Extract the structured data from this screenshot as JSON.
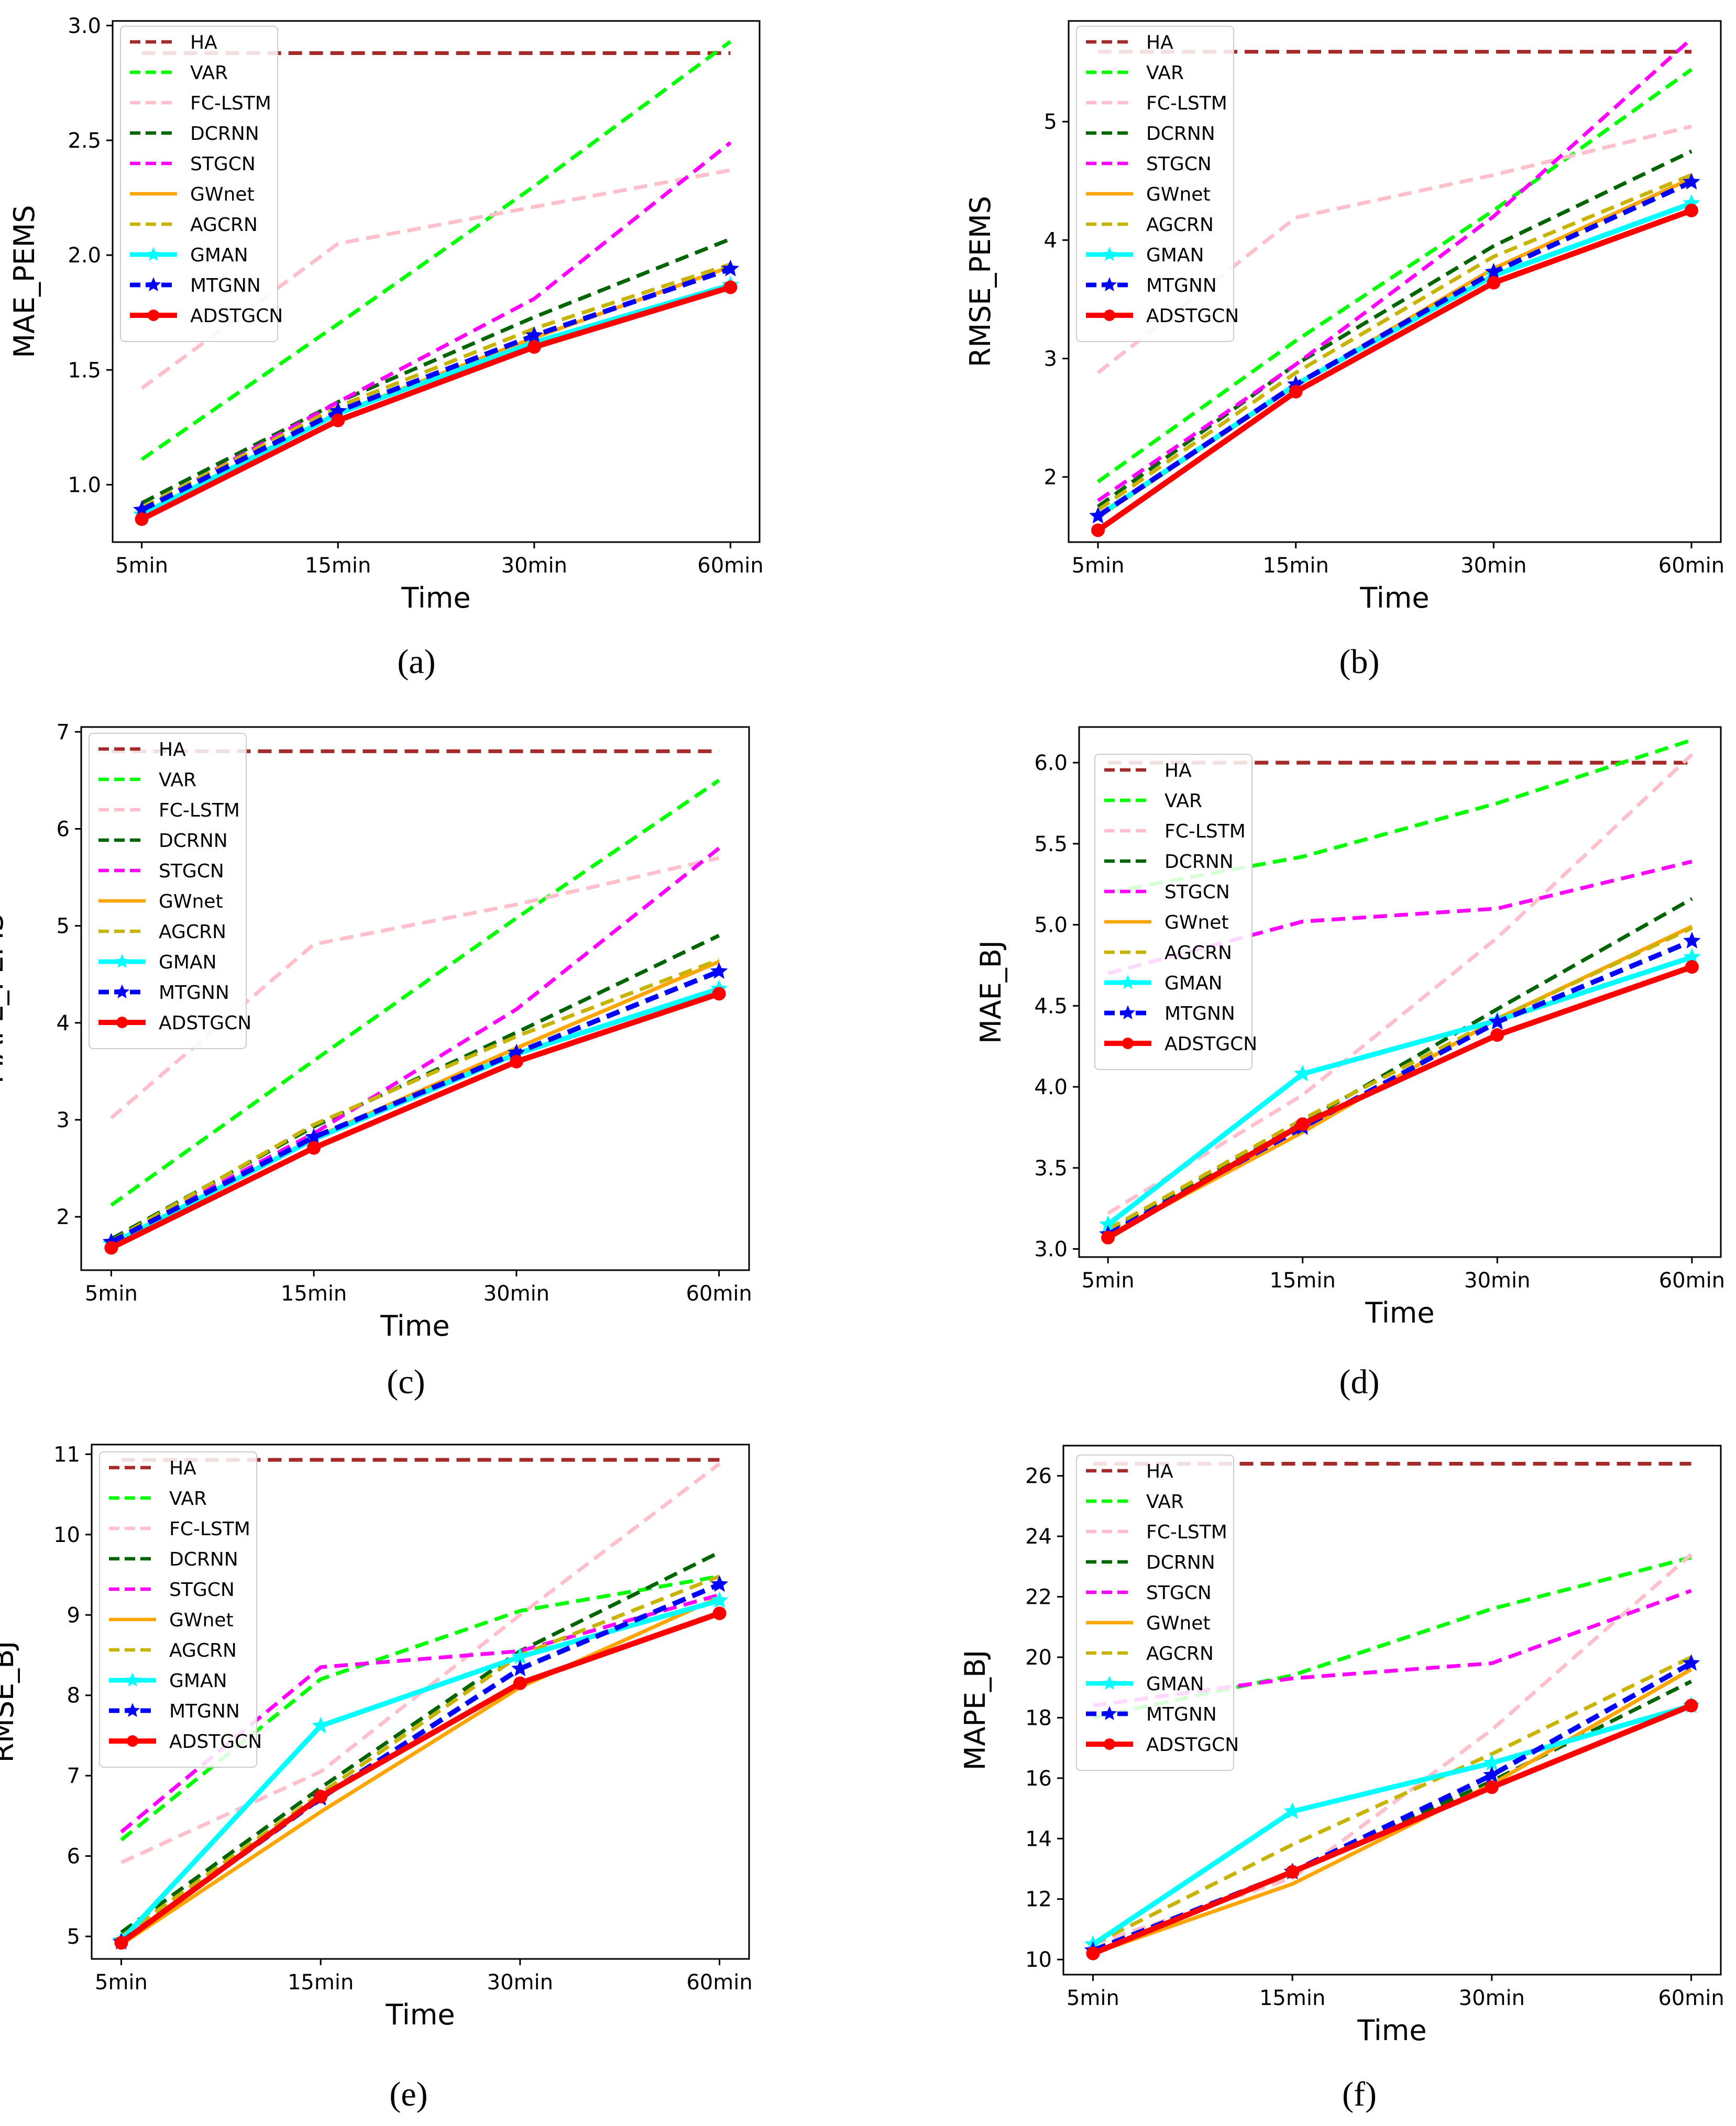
{
  "chart_data": [
    {
      "panel_label": "(a)",
      "panel_letter": "a",
      "type": "line",
      "xlabel": "Time",
      "ylabel": "MAE_PEMS",
      "categories": [
        "5min",
        "15min",
        "30min",
        "60min"
      ],
      "ylim": [
        0.75,
        3.02
      ],
      "yticks": [
        "1.0",
        "1.5",
        "2.0",
        "2.5",
        "3.0"
      ],
      "grid": false,
      "legend": "top-left",
      "series": [
        {
          "name": "HA",
          "values": [
            2.88,
            2.88,
            2.88,
            2.88
          ]
        },
        {
          "name": "VAR",
          "values": [
            1.11,
            1.7,
            2.3,
            2.93
          ]
        },
        {
          "name": "FC-LSTM",
          "values": [
            1.42,
            2.05,
            2.21,
            2.37
          ]
        },
        {
          "name": "DCRNN",
          "values": [
            0.92,
            1.36,
            1.73,
            2.07
          ]
        },
        {
          "name": "STGCN",
          "values": [
            0.89,
            1.36,
            1.81,
            2.49
          ]
        },
        {
          "name": "GWnet",
          "values": [
            0.87,
            1.31,
            1.64,
            1.95
          ]
        },
        {
          "name": "AGCRN",
          "values": [
            0.9,
            1.34,
            1.68,
            1.96
          ]
        },
        {
          "name": "GMAN",
          "values": [
            0.87,
            1.31,
            1.62,
            1.87
          ]
        },
        {
          "name": "MTGNN",
          "values": [
            0.89,
            1.32,
            1.65,
            1.94
          ]
        },
        {
          "name": "ADSTGCN",
          "values": [
            0.85,
            1.28,
            1.6,
            1.86
          ]
        }
      ]
    },
    {
      "panel_label": "(b)",
      "panel_letter": "b",
      "type": "line",
      "xlabel": "Time",
      "ylabel": "RMSE_PEMS",
      "categories": [
        "5min",
        "15min",
        "30min",
        "60min"
      ],
      "ylim": [
        1.45,
        5.85
      ],
      "yticks": [
        "2",
        "3",
        "4",
        "5"
      ],
      "grid": false,
      "legend": "top-left",
      "series": [
        {
          "name": "HA",
          "values": [
            5.59,
            5.59,
            5.59,
            5.59
          ]
        },
        {
          "name": "VAR",
          "values": [
            1.96,
            3.15,
            4.25,
            5.44
          ]
        },
        {
          "name": "FC-LSTM",
          "values": [
            2.88,
            4.19,
            4.55,
            4.96
          ]
        },
        {
          "name": "DCRNN",
          "values": [
            1.75,
            2.95,
            3.95,
            4.75
          ]
        },
        {
          "name": "STGCN",
          "values": [
            1.8,
            2.95,
            4.2,
            5.7
          ]
        },
        {
          "name": "GWnet",
          "values": [
            1.66,
            2.77,
            3.76,
            4.52
          ]
        },
        {
          "name": "AGCRN",
          "values": [
            1.72,
            2.88,
            3.86,
            4.55
          ]
        },
        {
          "name": "GMAN",
          "values": [
            1.67,
            2.78,
            3.7,
            4.31
          ]
        },
        {
          "name": "MTGNN",
          "values": [
            1.67,
            2.78,
            3.73,
            4.49
          ]
        },
        {
          "name": "ADSTGCN",
          "values": [
            1.55,
            2.72,
            3.64,
            4.25
          ]
        }
      ]
    },
    {
      "panel_label": "(c)",
      "panel_letter": "c",
      "type": "line",
      "xlabel": "Time",
      "ylabel": "MAPE_PEMS",
      "categories": [
        "5min",
        "15min",
        "30min",
        "60min"
      ],
      "ylim": [
        1.45,
        7.05
      ],
      "yticks": [
        "2",
        "3",
        "4",
        "5",
        "6",
        "7"
      ],
      "grid": false,
      "legend": "top-left",
      "series": [
        {
          "name": "HA",
          "values": [
            6.8,
            6.8,
            6.8,
            6.8
          ]
        },
        {
          "name": "VAR",
          "values": [
            2.12,
            3.61,
            5.08,
            6.5
          ]
        },
        {
          "name": "FC-LSTM",
          "values": [
            3.02,
            4.81,
            5.22,
            5.7
          ]
        },
        {
          "name": "DCRNN",
          "values": [
            1.77,
            2.93,
            3.9,
            4.9
          ]
        },
        {
          "name": "STGCN",
          "values": [
            1.75,
            2.86,
            4.14,
            5.8
          ]
        },
        {
          "name": "GWnet",
          "values": [
            1.71,
            2.81,
            3.74,
            4.63
          ]
        },
        {
          "name": "AGCRN",
          "values": [
            1.75,
            2.95,
            3.86,
            4.65
          ]
        },
        {
          "name": "GMAN",
          "values": [
            1.72,
            2.8,
            3.68,
            4.35
          ]
        },
        {
          "name": "MTGNN",
          "values": [
            1.74,
            2.82,
            3.69,
            4.53
          ]
        },
        {
          "name": "ADSTGCN",
          "values": [
            1.68,
            2.71,
            3.6,
            4.3
          ]
        }
      ]
    },
    {
      "panel_label": "(d)",
      "panel_letter": "d",
      "type": "line",
      "xlabel": "Time",
      "ylabel": "MAE_BJ",
      "categories": [
        "5min",
        "15min",
        "30min",
        "60min"
      ],
      "ylim": [
        2.95,
        6.22
      ],
      "yticks": [
        "3.0",
        "3.5",
        "4.0",
        "4.5",
        "5.0",
        "5.5",
        "6.0"
      ],
      "grid": false,
      "legend": "top-left",
      "series": [
        {
          "name": "HA",
          "values": [
            6.0,
            6.0,
            6.0,
            6.0
          ]
        },
        {
          "name": "VAR",
          "values": [
            5.2,
            5.42,
            5.75,
            6.14
          ]
        },
        {
          "name": "FC-LSTM",
          "values": [
            3.22,
            3.95,
            4.92,
            6.05
          ]
        },
        {
          "name": "DCRNN",
          "values": [
            3.11,
            3.78,
            4.48,
            5.16
          ]
        },
        {
          "name": "STGCN",
          "values": [
            4.7,
            5.02,
            5.1,
            5.39
          ]
        },
        {
          "name": "GWnet",
          "values": [
            3.08,
            3.72,
            4.42,
            4.99
          ]
        },
        {
          "name": "AGCRN",
          "values": [
            3.12,
            3.8,
            4.42,
            4.98
          ]
        },
        {
          "name": "GMAN",
          "values": [
            3.15,
            4.08,
            4.41,
            4.8
          ]
        },
        {
          "name": "MTGNN",
          "values": [
            3.09,
            3.75,
            4.4,
            4.9
          ]
        },
        {
          "name": "ADSTGCN",
          "values": [
            3.07,
            3.77,
            4.32,
            4.74
          ]
        }
      ]
    },
    {
      "panel_label": "(e)",
      "panel_letter": "e",
      "type": "line",
      "xlabel": "Time",
      "ylabel": "RMSE_BJ",
      "categories": [
        "5min",
        "15min",
        "30min",
        "60min"
      ],
      "ylim": [
        4.72,
        11.12
      ],
      "yticks": [
        "5",
        "6",
        "7",
        "8",
        "9",
        "10",
        "11"
      ],
      "grid": false,
      "legend": "top-left",
      "series": [
        {
          "name": "HA",
          "values": [
            10.93,
            10.93,
            10.93,
            10.93
          ]
        },
        {
          "name": "VAR",
          "values": [
            6.2,
            8.2,
            9.05,
            9.48
          ]
        },
        {
          "name": "FC-LSTM",
          "values": [
            5.92,
            7.05,
            9.0,
            10.88
          ]
        },
        {
          "name": "DCRNN",
          "values": [
            5.05,
            6.85,
            8.55,
            9.78
          ]
        },
        {
          "name": "STGCN",
          "values": [
            6.3,
            8.35,
            8.55,
            9.25
          ]
        },
        {
          "name": "GWnet",
          "values": [
            4.9,
            6.55,
            8.1,
            9.22
          ]
        },
        {
          "name": "AGCRN",
          "values": [
            5.0,
            6.78,
            8.5,
            9.48
          ]
        },
        {
          "name": "GMAN",
          "values": [
            4.95,
            7.62,
            8.48,
            9.18
          ]
        },
        {
          "name": "MTGNN",
          "values": [
            4.93,
            6.72,
            8.33,
            9.38
          ]
        },
        {
          "name": "ADSTGCN",
          "values": [
            4.92,
            6.74,
            8.15,
            9.02
          ]
        }
      ]
    },
    {
      "panel_label": "(f)",
      "panel_letter": "f",
      "type": "line",
      "xlabel": "Time",
      "ylabel": "MAPE_BJ",
      "categories": [
        "5min",
        "15min",
        "30min",
        "60min"
      ],
      "ylim": [
        9.5,
        27.0
      ],
      "yticks": [
        "10",
        "12",
        "14",
        "16",
        "18",
        "20",
        "22",
        "24",
        "26"
      ],
      "grid": false,
      "legend": "top-left",
      "series": [
        {
          "name": "HA",
          "values": [
            26.4,
            26.4,
            26.4,
            26.4
          ]
        },
        {
          "name": "VAR",
          "values": [
            18.0,
            19.4,
            21.6,
            23.3
          ]
        },
        {
          "name": "FC-LSTM",
          "values": [
            10.5,
            12.7,
            17.6,
            23.4
          ]
        },
        {
          "name": "DCRNN",
          "values": [
            10.3,
            12.9,
            15.9,
            19.2
          ]
        },
        {
          "name": "STGCN",
          "values": [
            18.4,
            19.3,
            19.8,
            22.2
          ]
        },
        {
          "name": "GWnet",
          "values": [
            10.2,
            12.5,
            15.8,
            19.6
          ]
        },
        {
          "name": "AGCRN",
          "values": [
            10.5,
            13.8,
            16.8,
            20.0
          ]
        },
        {
          "name": "GMAN",
          "values": [
            10.5,
            14.9,
            16.5,
            18.4
          ]
        },
        {
          "name": "MTGNN",
          "values": [
            10.3,
            12.9,
            16.1,
            19.8
          ]
        },
        {
          "name": "ADSTGCN",
          "values": [
            10.2,
            12.9,
            15.7,
            18.4
          ]
        }
      ]
    }
  ],
  "series_styles": [
    {
      "color": "#a52a2a",
      "dash": "dashed",
      "marker": "none",
      "width": 3
    },
    {
      "color": "#00ff00",
      "dash": "dashed",
      "marker": "none",
      "width": 3
    },
    {
      "color": "#ffc0cb",
      "dash": "dashed",
      "marker": "none",
      "width": 3
    },
    {
      "color": "#006400",
      "dash": "dashed",
      "marker": "none",
      "width": 3
    },
    {
      "color": "#ff00ff",
      "dash": "dashed",
      "marker": "none",
      "width": 3
    },
    {
      "color": "#ffa500",
      "dash": "solid",
      "marker": "none",
      "width": 3
    },
    {
      "color": "#c8b400",
      "dash": "dashed",
      "marker": "none",
      "width": 3
    },
    {
      "color": "#00ffff",
      "dash": "solid",
      "marker": "star",
      "width": 4
    },
    {
      "color": "#0000ff",
      "dash": "dashed",
      "marker": "star",
      "width": 4
    },
    {
      "color": "#ff0000",
      "dash": "solid",
      "marker": "circle",
      "width": 4.5
    }
  ]
}
